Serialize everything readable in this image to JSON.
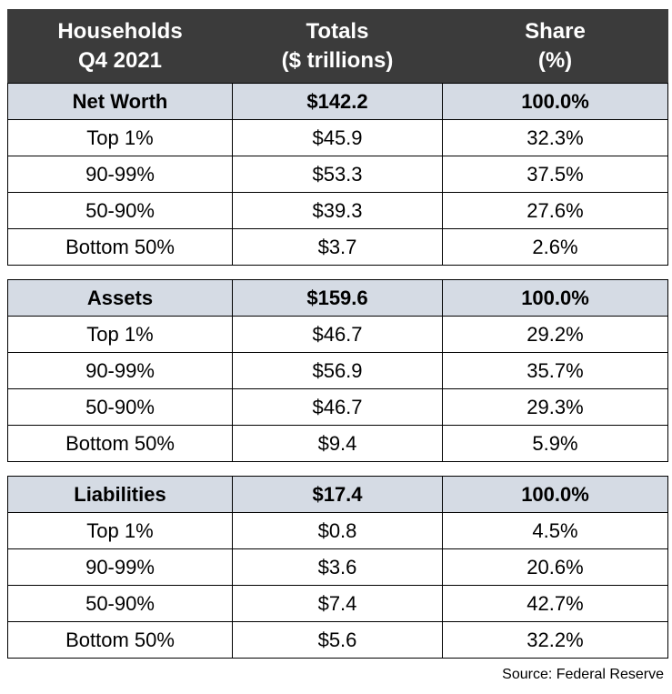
{
  "header": {
    "col1_line1": "Households",
    "col1_line2": "Q4 2021",
    "col2_line1": "Totals",
    "col2_line2": "($ trillions)",
    "col3_line1": "Share",
    "col3_line2": "(%)"
  },
  "sections": [
    {
      "title": "Net Worth",
      "total": "$142.2",
      "share": "100.0%",
      "rows": [
        {
          "group": "Top 1%",
          "total": "$45.9",
          "share": "32.3%"
        },
        {
          "group": "90-99%",
          "total": "$53.3",
          "share": "37.5%"
        },
        {
          "group": "50-90%",
          "total": "$39.3",
          "share": "27.6%"
        },
        {
          "group": "Bottom 50%",
          "total": "$3.7",
          "share": "2.6%"
        }
      ]
    },
    {
      "title": "Assets",
      "total": "$159.6",
      "share": "100.0%",
      "rows": [
        {
          "group": "Top 1%",
          "total": "$46.7",
          "share": "29.2%"
        },
        {
          "group": "90-99%",
          "total": "$56.9",
          "share": "35.7%"
        },
        {
          "group": "50-90%",
          "total": "$46.7",
          "share": "29.3%"
        },
        {
          "group": "Bottom 50%",
          "total": "$9.4",
          "share": "5.9%"
        }
      ]
    },
    {
      "title": "Liabilities",
      "total": "$17.4",
      "share": "100.0%",
      "rows": [
        {
          "group": "Top 1%",
          "total": "$0.8",
          "share": "4.5%"
        },
        {
          "group": "90-99%",
          "total": "$3.6",
          "share": "20.6%"
        },
        {
          "group": "50-90%",
          "total": "$7.4",
          "share": "42.7%"
        },
        {
          "group": "Bottom 50%",
          "total": "$5.6",
          "share": "32.2%"
        }
      ]
    }
  ],
  "source": "Source: Federal Reserve",
  "colors": {
    "header_bg": "#3b3b3b",
    "section_bg": "#d5dbe4"
  }
}
